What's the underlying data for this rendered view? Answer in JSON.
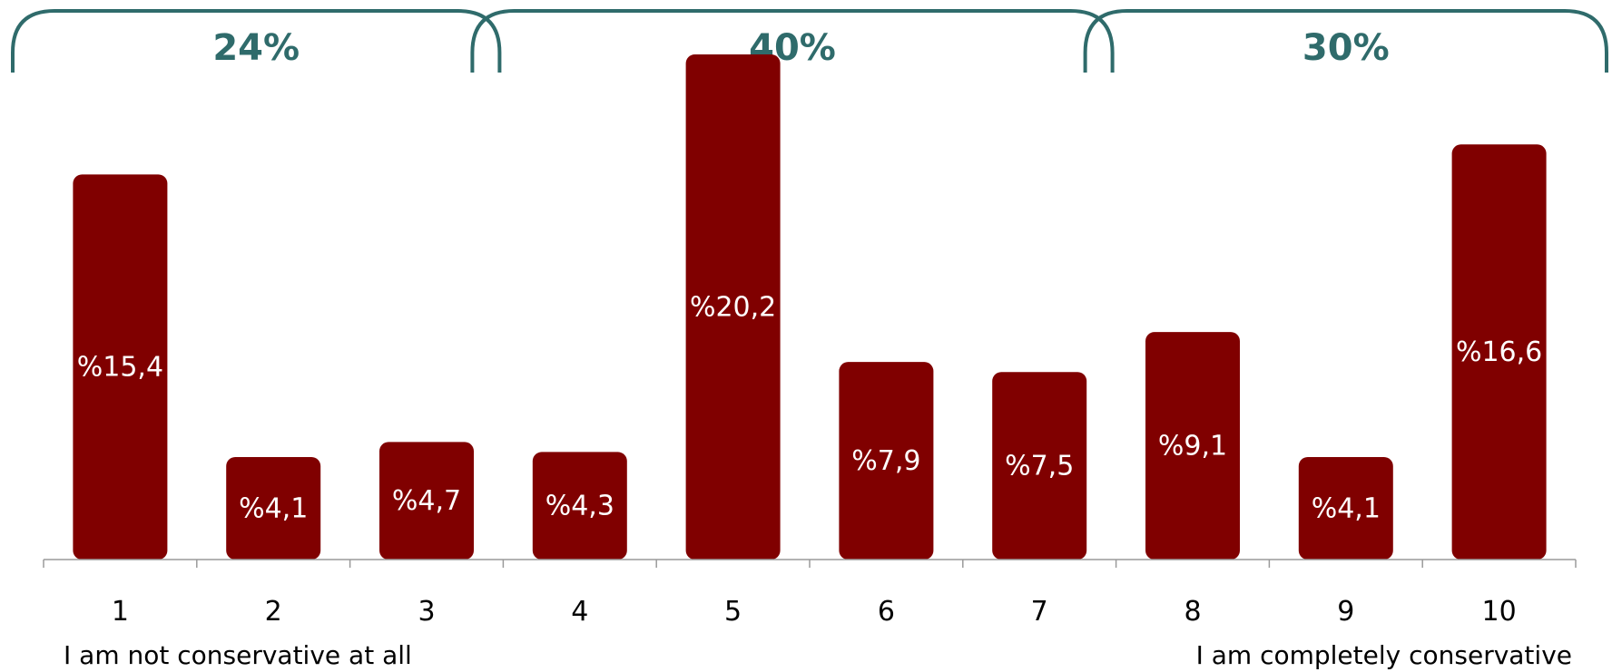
{
  "chart_data": {
    "type": "bar",
    "categories": [
      "1",
      "2",
      "3",
      "4",
      "5",
      "6",
      "7",
      "8",
      "9",
      "10"
    ],
    "values": [
      15.4,
      4.1,
      4.7,
      4.3,
      20.2,
      7.9,
      7.5,
      9.1,
      4.1,
      16.6
    ],
    "value_labels": [
      "%15,4",
      "%4,1",
      "%4,7",
      "%4,3",
      "%20,2",
      "%7,9",
      "%7,5",
      "%9,1",
      "%4,1",
      "%16,6"
    ],
    "ylim": [
      0,
      22
    ],
    "grid": false,
    "bar_color": "#800000",
    "groups": [
      {
        "label": "24%",
        "categories": [
          "1",
          "2",
          "3"
        ]
      },
      {
        "label": "40%",
        "categories": [
          "4",
          "5",
          "6",
          "7"
        ]
      },
      {
        "label": "30%",
        "categories": [
          "8",
          "9",
          "10"
        ]
      }
    ],
    "group_color": "#2f6b6b",
    "scale_labels": {
      "left": "I am not conservative at all",
      "right": "I am completely conservative"
    }
  }
}
